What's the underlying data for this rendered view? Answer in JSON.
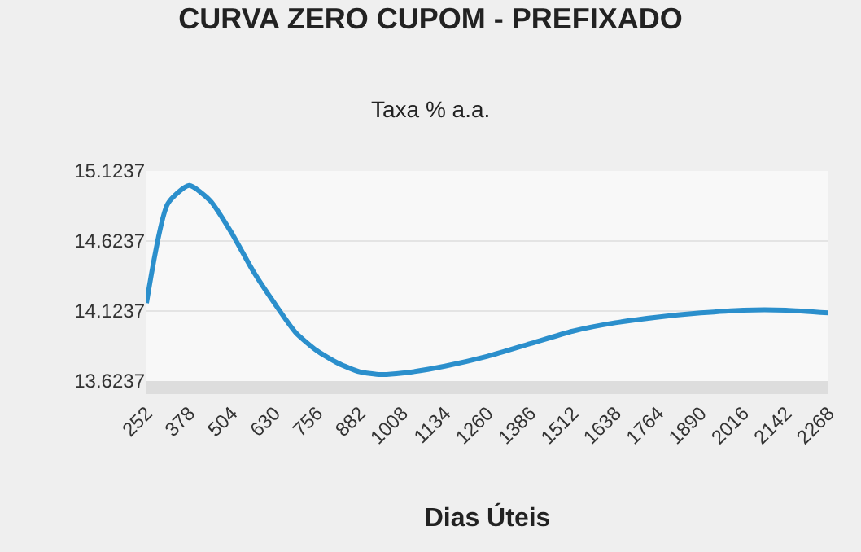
{
  "chart_data": {
    "type": "line",
    "title": "CURVA ZERO CUPOM - PREFIXADO",
    "subtitle": "Taxa % a.a.",
    "xlabel": "Dias Úteis",
    "x": [
      252,
      315,
      378,
      441,
      504,
      567,
      630,
      693,
      756,
      819,
      882,
      945,
      1008,
      1134,
      1260,
      1386,
      1512,
      1638,
      1764,
      1890,
      2016,
      2142,
      2268
    ],
    "series": [
      {
        "color": "#2b8fcc",
        "values": [
          14.18,
          14.89,
          15.02,
          14.91,
          14.68,
          14.41,
          14.18,
          13.97,
          13.84,
          13.75,
          13.69,
          13.67,
          13.68,
          13.73,
          13.8,
          13.89,
          13.98,
          14.04,
          14.08,
          14.11,
          14.13,
          14.13,
          14.11
        ]
      }
    ],
    "xlim": [
      252,
      2268
    ],
    "xticks": [
      252,
      378,
      504,
      630,
      756,
      882,
      1008,
      1134,
      1260,
      1386,
      1512,
      1638,
      1764,
      1890,
      2016,
      2142,
      2268
    ],
    "ylim": [
      13.6237,
      15.1237
    ],
    "yticks": [
      13.6237,
      14.1237,
      14.6237,
      15.1237
    ],
    "grid": "y",
    "marker": "none",
    "line_style": "solid"
  }
}
